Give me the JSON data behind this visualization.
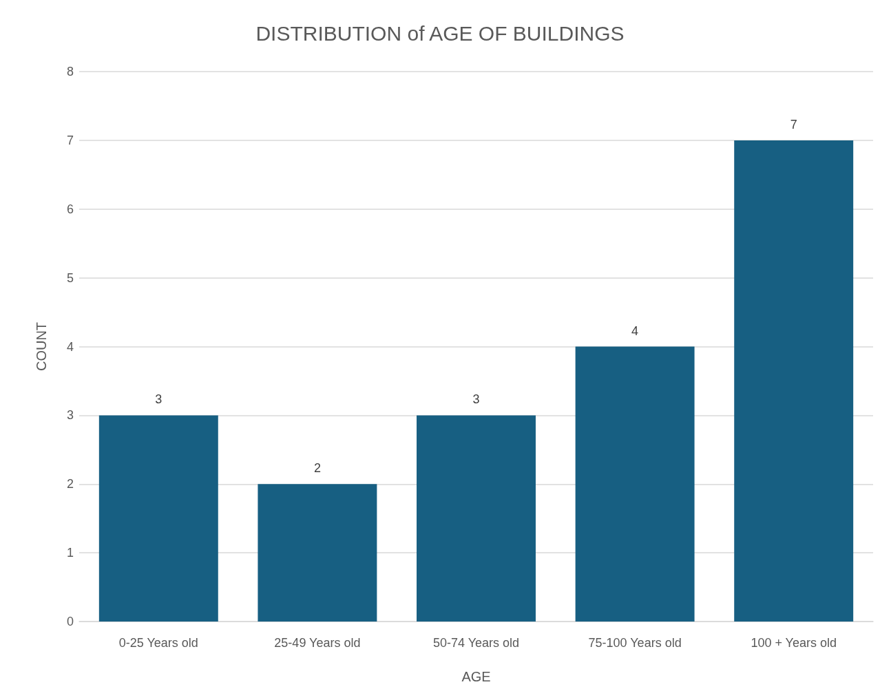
{
  "chart_data": {
    "type": "bar",
    "title": "DISTRIBUTION of AGE OF BUILDINGS",
    "xlabel": "AGE",
    "ylabel": "COUNT",
    "categories": [
      "0-25 Years old",
      "25-49 Years old",
      "50-74 Years old",
      "75-100 Years old",
      "100 + Years old"
    ],
    "values": [
      3,
      2,
      3,
      4,
      7
    ],
    "color": "#175f82",
    "ylim": [
      0,
      8
    ],
    "yticks": [
      0,
      1,
      2,
      3,
      4,
      5,
      6,
      7,
      8
    ],
    "grid": "y",
    "data_labels": true
  }
}
